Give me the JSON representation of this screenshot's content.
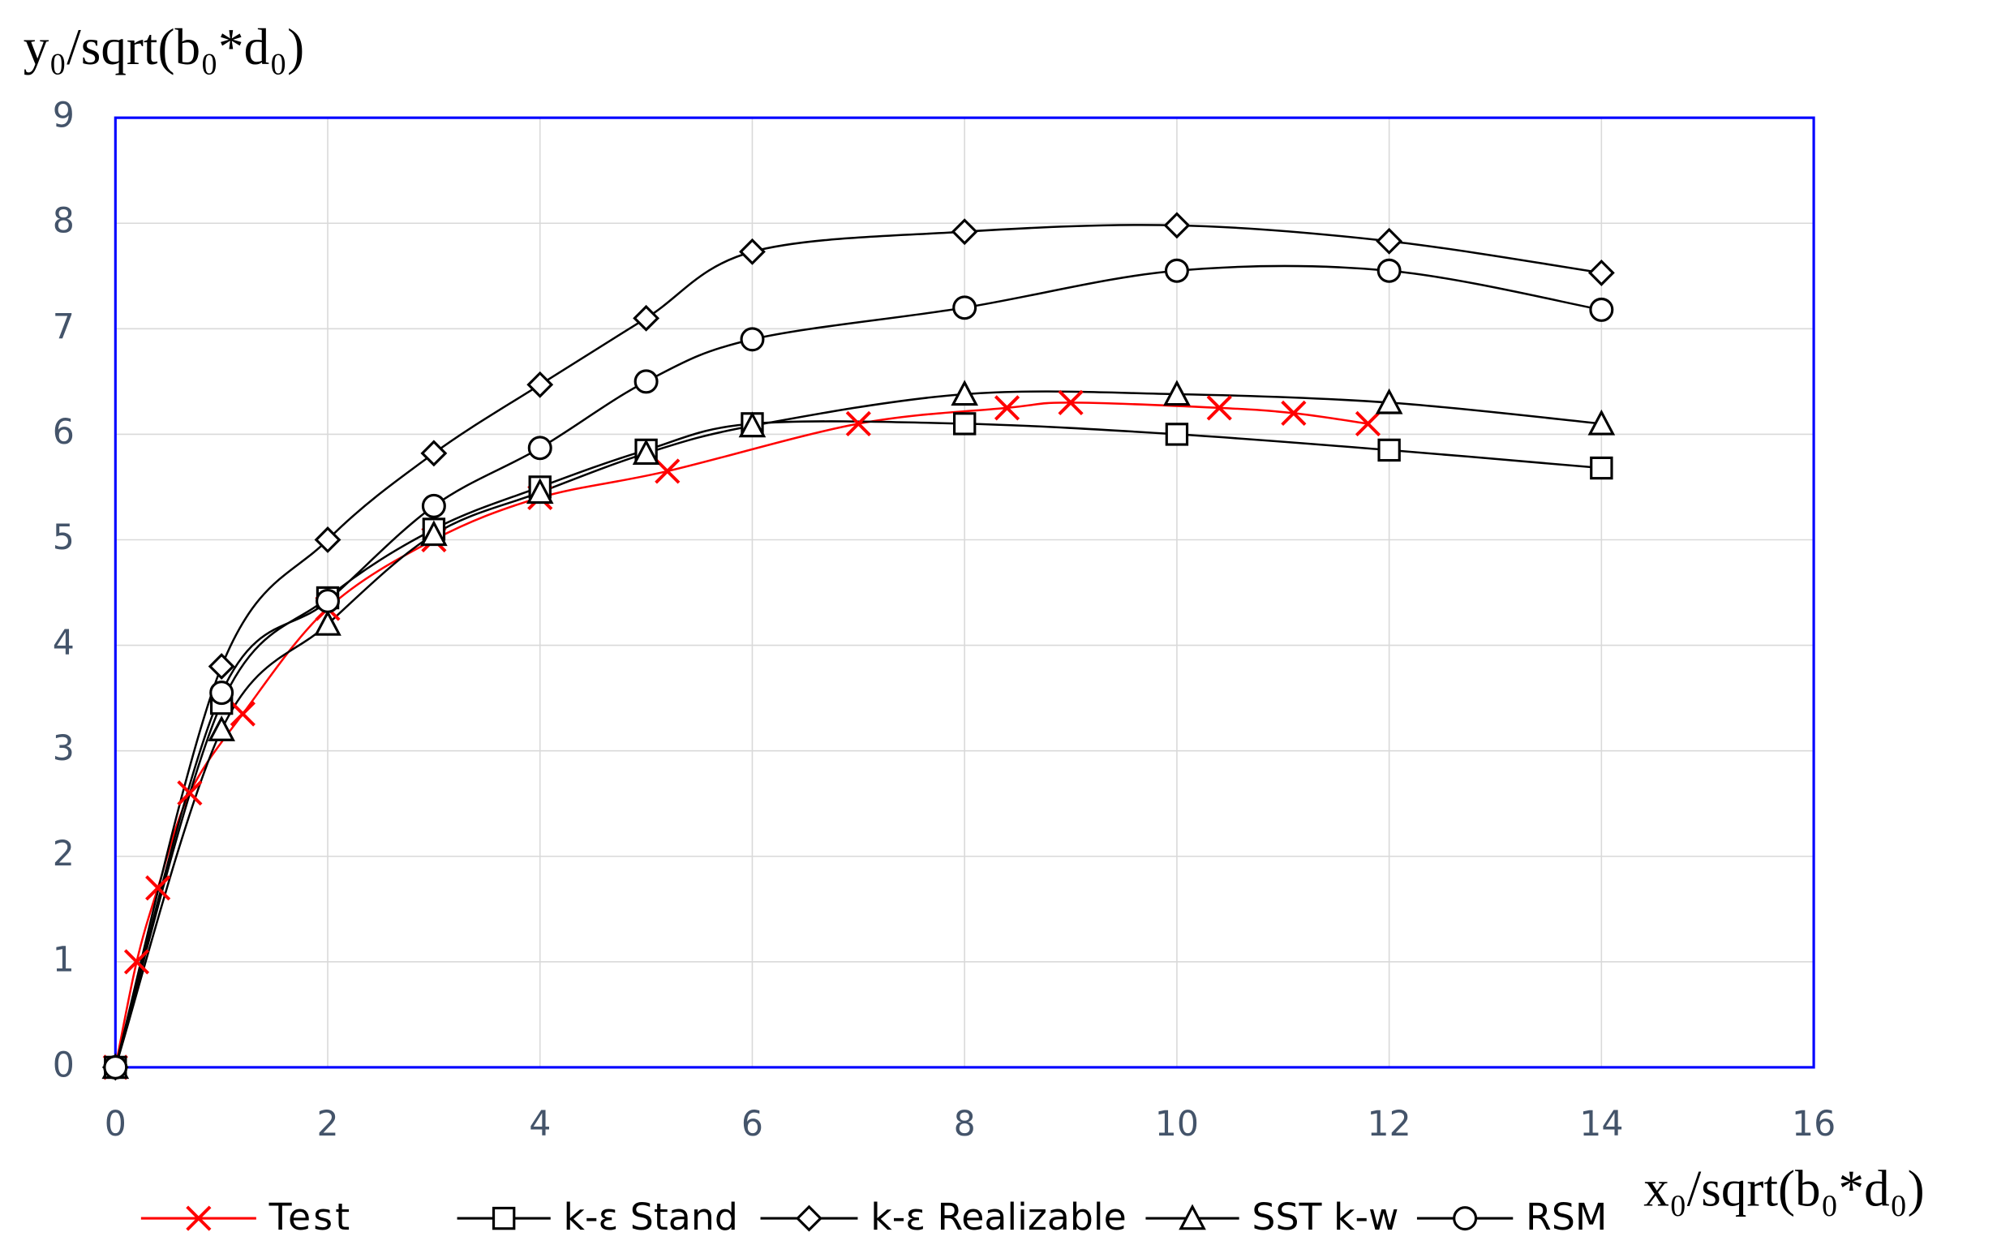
{
  "chart_data": {
    "type": "line",
    "ylabel": "y₀/sqrt(b₀*d₀)",
    "xlabel": "x₀/sqrt(b₀*d₀)",
    "xlim": [
      0,
      16
    ],
    "xticks": [
      0,
      2,
      4,
      6,
      8,
      10,
      12,
      14,
      16
    ],
    "ylim": [
      0,
      9
    ],
    "yticks": [
      0,
      1,
      2,
      3,
      4,
      5,
      6,
      7,
      8,
      9
    ],
    "grid": true,
    "smooth": true,
    "legend": "bottom",
    "series": [
      {
        "name": "Test",
        "color": "#ff0000",
        "marker": "x",
        "x": [
          0,
          0.2,
          0.4,
          0.7,
          1.2,
          2,
          3,
          4,
          5.2,
          7,
          8.4,
          9,
          10.4,
          11.1,
          11.8
        ],
        "values": [
          0,
          1,
          1.7,
          2.6,
          3.35,
          4.35,
          5,
          5.4,
          5.65,
          6.1,
          6.25,
          6.3,
          6.25,
          6.2,
          6.1
        ]
      },
      {
        "name": "k-ε Stand",
        "color": "#000000",
        "marker": "square",
        "x": [
          0,
          1,
          2,
          3,
          4,
          5,
          6,
          8,
          10,
          12,
          14
        ],
        "values": [
          0,
          3.45,
          4.45,
          5.1,
          5.5,
          5.85,
          6.1,
          6.1,
          6,
          5.85,
          5.68
        ]
      },
      {
        "name": "k-ε Realizable",
        "color": "#000000",
        "marker": "diamond",
        "x": [
          0,
          1,
          2,
          3,
          4,
          5,
          6,
          8,
          10,
          12,
          14
        ],
        "values": [
          0,
          3.8,
          5,
          5.82,
          6.47,
          7.1,
          7.73,
          7.92,
          7.98,
          7.83,
          7.53
        ]
      },
      {
        "name": "SST k-w",
        "color": "#000000",
        "marker": "triangle",
        "x": [
          0,
          1,
          2,
          3,
          4,
          5,
          6,
          8,
          10,
          12,
          14
        ],
        "values": [
          0,
          3.2,
          4.2,
          5.05,
          5.45,
          5.82,
          6.08,
          6.38,
          6.38,
          6.3,
          6.1
        ]
      },
      {
        "name": "RSM",
        "color": "#000000",
        "marker": "circle",
        "x": [
          0,
          1,
          2,
          3,
          4,
          5,
          6,
          8,
          10,
          12,
          14
        ],
        "values": [
          0,
          3.55,
          4.42,
          5.32,
          5.87,
          6.5,
          6.9,
          7.2,
          7.55,
          7.55,
          7.18
        ]
      }
    ]
  }
}
